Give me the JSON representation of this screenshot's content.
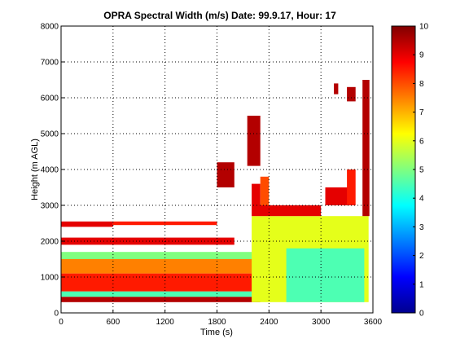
{
  "chart_data": {
    "type": "heatmap",
    "title": "OPRA Spectral Width (m/s)  Date: 99.9.17, Hour: 17",
    "xlabel": "Time (s)",
    "ylabel": "Height (m AGL)",
    "xlim": [
      0,
      3600
    ],
    "ylim": [
      0,
      8000
    ],
    "x_ticks": [
      "0",
      "600",
      "1200",
      "1800",
      "2400",
      "3000",
      "3600"
    ],
    "y_ticks": [
      "0",
      "1000",
      "2000",
      "3000",
      "4000",
      "5000",
      "6000",
      "7000",
      "8000"
    ],
    "colorbar": {
      "range": [
        0,
        10
      ],
      "ticks": [
        "0",
        "1",
        "2",
        "3",
        "4",
        "5",
        "6",
        "7",
        "8",
        "9",
        "10"
      ],
      "colormap": "jet"
    },
    "grid": "dotted",
    "regions": [
      {
        "t0": 0,
        "t1": 2300,
        "h0": 300,
        "h1": 450,
        "value": 9.5
      },
      {
        "t0": 0,
        "t1": 2300,
        "h0": 450,
        "h1": 600,
        "value": 4.5
      },
      {
        "t0": 0,
        "t1": 2300,
        "h0": 600,
        "h1": 1100,
        "value": 8.5
      },
      {
        "t0": 0,
        "t1": 2300,
        "h0": 1100,
        "h1": 1500,
        "value": 7.5
      },
      {
        "t0": 0,
        "t1": 2300,
        "h0": 1500,
        "h1": 1700,
        "value": 5.0
      },
      {
        "t0": 0,
        "t1": 600,
        "h0": 2400,
        "h1": 2550,
        "value": 9.0
      },
      {
        "t0": 600,
        "t1": 1800,
        "h0": 2450,
        "h1": 2550,
        "value": 8.5
      },
      {
        "t0": 2200,
        "t1": 3550,
        "h0": 300,
        "h1": 2700,
        "value": 6.0
      },
      {
        "t0": 2600,
        "t1": 3500,
        "h0": 300,
        "h1": 1800,
        "value": 4.5
      },
      {
        "t0": 2200,
        "t1": 3000,
        "h0": 2700,
        "h1": 3000,
        "value": 9.0
      },
      {
        "t0": 2200,
        "t1": 2300,
        "h0": 3000,
        "h1": 3600,
        "value": 9.0
      },
      {
        "t0": 2300,
        "t1": 2400,
        "h0": 3000,
        "h1": 3800,
        "value": 8.0
      },
      {
        "t0": 2150,
        "t1": 2300,
        "h0": 4100,
        "h1": 5500,
        "value": 9.5
      },
      {
        "t0": 1800,
        "t1": 2000,
        "h0": 3500,
        "h1": 4200,
        "value": 9.5
      },
      {
        "t0": 3050,
        "t1": 3350,
        "h0": 3000,
        "h1": 3500,
        "value": 9.0
      },
      {
        "t0": 3300,
        "t1": 3400,
        "h0": 3000,
        "h1": 4000,
        "value": 8.5
      },
      {
        "t0": 3480,
        "t1": 3560,
        "h0": 2700,
        "h1": 6500,
        "value": 9.5
      },
      {
        "t0": 3300,
        "t1": 3400,
        "h0": 5900,
        "h1": 6300,
        "value": 9.5
      },
      {
        "t0": 3150,
        "t1": 3200,
        "h0": 6100,
        "h1": 6400,
        "value": 9.5
      },
      {
        "t0": 0,
        "t1": 2000,
        "h0": 1900,
        "h1": 2100,
        "value": 9.0
      }
    ]
  }
}
